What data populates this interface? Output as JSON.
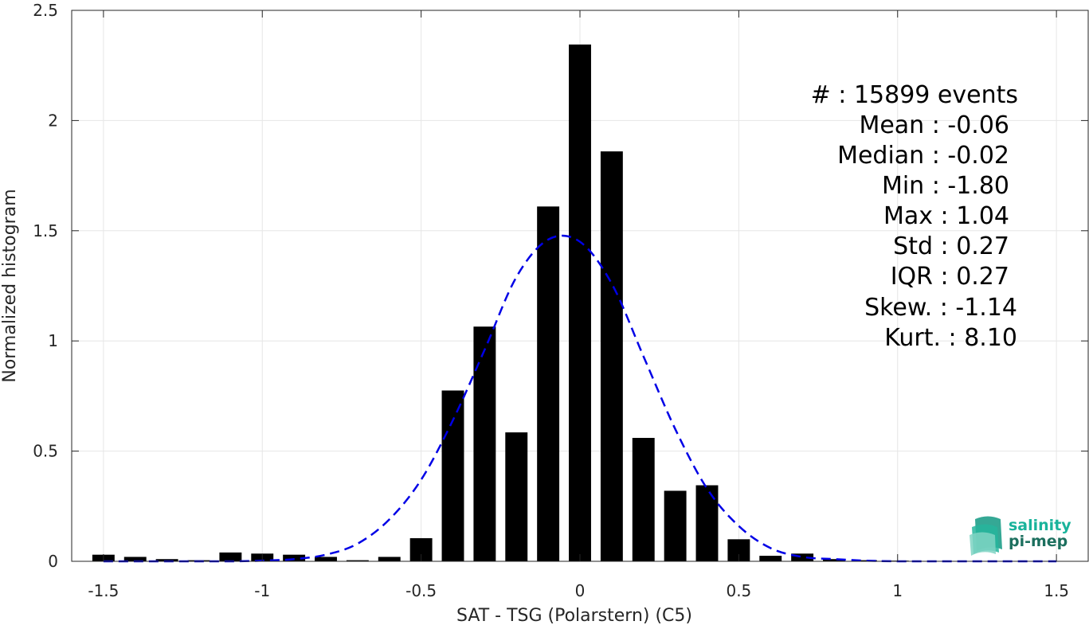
{
  "chart_data": {
    "type": "bar",
    "xlabel": "SAT - TSG (Polarstern) (C5)",
    "ylabel": "Normalized histogram",
    "xlim": [
      -1.6,
      1.6
    ],
    "ylim": [
      0,
      2.5
    ],
    "xticks": [
      -1.5,
      -1,
      -0.5,
      0,
      0.5,
      1,
      1.5
    ],
    "xtick_labels": [
      "-1.5",
      "-1",
      "-0.5",
      "0",
      "0.5",
      "1",
      "1.5"
    ],
    "yticks": [
      0,
      0.5,
      1,
      1.5,
      2,
      2.5
    ],
    "ytick_labels": [
      "0",
      "0.5",
      "1",
      "1.5",
      "2",
      "2.5"
    ],
    "grid": true,
    "bar_width": 0.07,
    "colors": {
      "bars": "#000000",
      "fit": "#0000e6",
      "axes": "#262626",
      "grid": "#e6e6e6"
    },
    "histogram": {
      "x": [
        -1.5,
        -1.4,
        -1.3,
        -1.2,
        -1.1,
        -1.0,
        -0.9,
        -0.8,
        -0.7,
        -0.6,
        -0.5,
        -0.4,
        -0.3,
        -0.2,
        -0.1,
        0.0,
        0.1,
        0.2,
        0.3,
        0.4,
        0.5,
        0.6,
        0.7,
        0.8,
        0.9,
        1.0
      ],
      "values": [
        0.03,
        0.02,
        0.01,
        0.005,
        0.04,
        0.035,
        0.03,
        0.02,
        0.005,
        0.02,
        0.105,
        0.775,
        1.065,
        0.585,
        1.61,
        2.345,
        1.86,
        0.56,
        0.32,
        0.345,
        0.1,
        0.025,
        0.035,
        0.01,
        0.005,
        0.003
      ]
    },
    "fit": {
      "style": "dashed",
      "x": [
        -1.5,
        -1.4,
        -1.3,
        -1.2,
        -1.1,
        -1.0,
        -0.9,
        -0.8,
        -0.7,
        -0.6,
        -0.5,
        -0.4,
        -0.3,
        -0.2,
        -0.1,
        0.0,
        0.1,
        0.2,
        0.3,
        0.4,
        0.5,
        0.6,
        0.7,
        0.8,
        0.9,
        1.0,
        1.1,
        1.2,
        1.3,
        1.4,
        1.5
      ],
      "values": [
        0.0,
        0.0,
        0.0,
        0.0,
        0.0,
        0.003,
        0.01,
        0.03,
        0.08,
        0.19,
        0.37,
        0.64,
        0.96,
        1.29,
        1.46,
        1.45,
        1.26,
        0.93,
        0.6,
        0.33,
        0.16,
        0.06,
        0.02,
        0.01,
        0.003,
        0.0,
        0.0,
        0.0,
        0.0,
        0.0,
        0.0
      ]
    },
    "annotations": [
      "#  : 15899 events",
      "Mean : -0.06",
      "Median : -0.02",
      "Min : -1.80",
      "Max : 1.04",
      "Std : 0.27",
      "IQR : 0.27",
      "Skew. : -1.14",
      "Kurt. : 8.10"
    ]
  },
  "logo": {
    "line1": "salinity",
    "line2": "pi-mep",
    "color1": "#19b39b",
    "color2": "#1c6f5e"
  }
}
